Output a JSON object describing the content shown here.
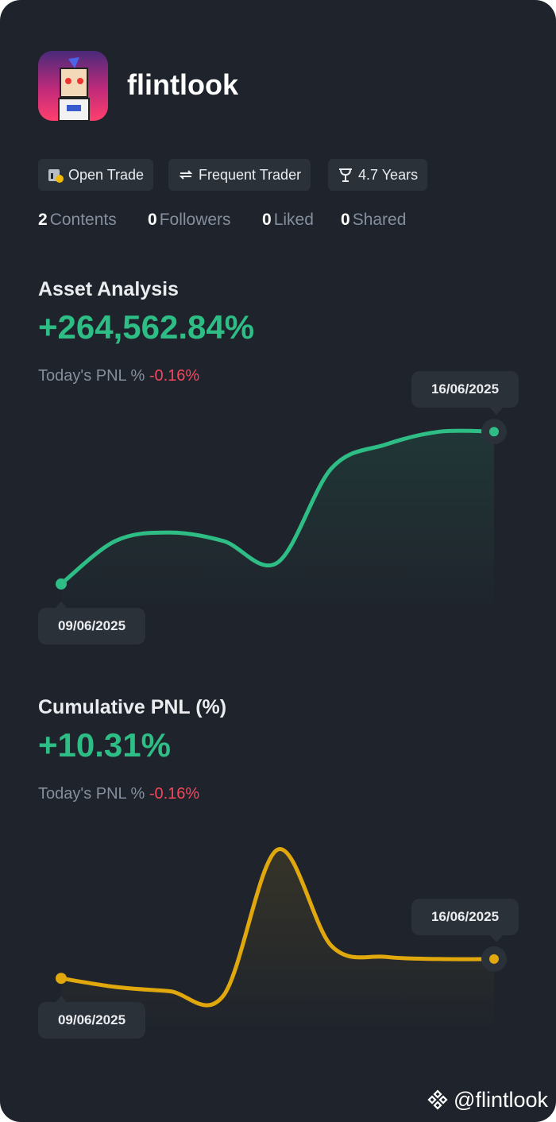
{
  "profile": {
    "username": "flintlook",
    "badges": [
      "Open Trade",
      "Frequent Trader",
      "4.7 Years"
    ],
    "stats": [
      {
        "value": 2,
        "label": "Contents"
      },
      {
        "value": 0,
        "label": "Followers"
      },
      {
        "value": 0,
        "label": "Liked"
      },
      {
        "value": 0,
        "label": "Shared"
      }
    ]
  },
  "charts": [
    {
      "type": "line",
      "title": "Asset Analysis",
      "headline": "+264,562.84%",
      "pnl_label": "Today's PNL %",
      "pnl_value": "-0.16%",
      "start_date": "09/06/2025",
      "end_date": "16/06/2025",
      "color": "#2ebd85",
      "ylim": [
        0,
        100
      ],
      "values": [
        13,
        33,
        37,
        33,
        23,
        67,
        78,
        84,
        84
      ]
    },
    {
      "type": "line",
      "title": "Cumulative PNL (%)",
      "headline": "+10.31%",
      "pnl_label": "Today's PNL %",
      "pnl_value": "-0.16%",
      "start_date": "09/06/2025",
      "end_date": "16/06/2025",
      "color": "#e0a80d",
      "ylim": [
        0,
        100
      ],
      "values": [
        24,
        20,
        18,
        16,
        84,
        39,
        34,
        33,
        33
      ]
    }
  ],
  "footer": {
    "handle": "@flintlook"
  }
}
